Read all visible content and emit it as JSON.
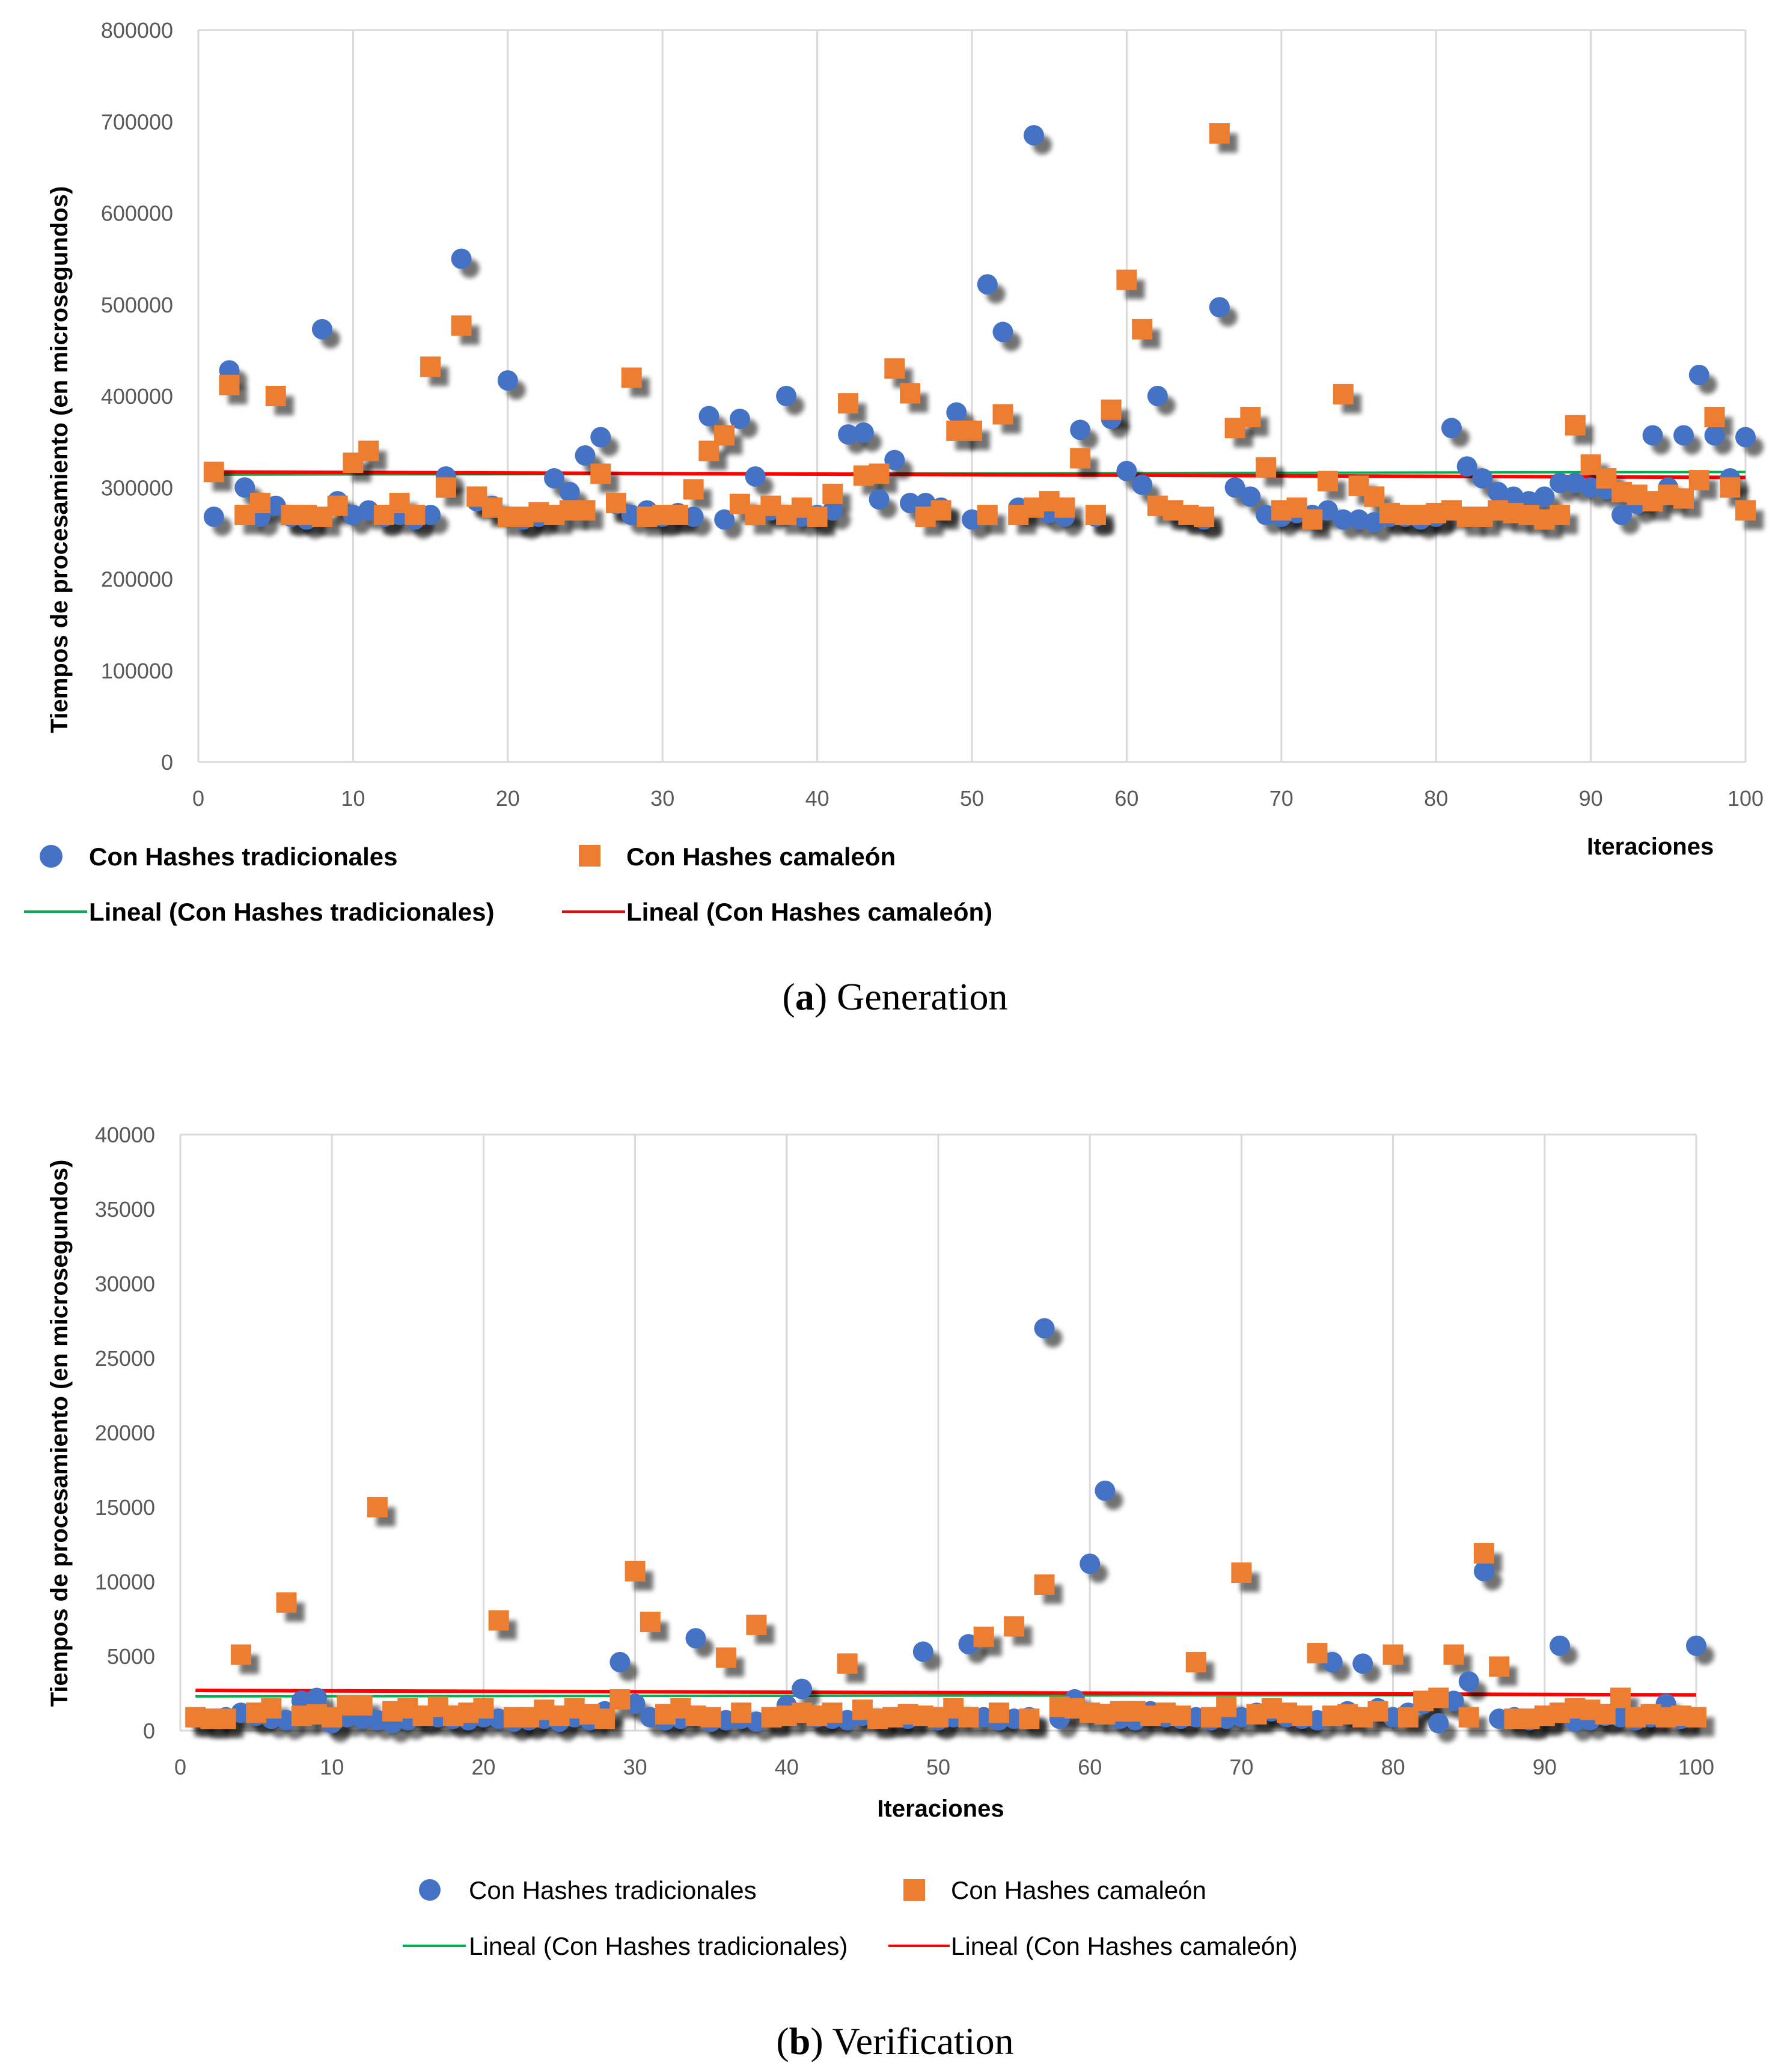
{
  "figure": {
    "a": {
      "letter": "a",
      "caption": "Generation"
    },
    "b": {
      "letter": "b",
      "caption": "Verification"
    }
  },
  "chart_data": [
    {
      "id": "a",
      "type": "scatter",
      "title": "",
      "xlabel": "Iteraciones",
      "ylabel": "Tiempos de procesamiento (en microsegundos)",
      "xlim": [
        0,
        100
      ],
      "ylim": [
        0,
        800000
      ],
      "xticks": [
        0,
        10,
        20,
        30,
        40,
        50,
        60,
        70,
        80,
        90,
        100
      ],
      "yticks": [
        0,
        100000,
        200000,
        300000,
        400000,
        500000,
        600000,
        700000,
        800000
      ],
      "grid": "vertical",
      "legend_position": "bottom",
      "series": [
        {
          "name": "Con Hashes tradicionales",
          "marker": "circle",
          "color": "#4472C4",
          "x": [
            1,
            2,
            3,
            4,
            5,
            6,
            7,
            8,
            9,
            10,
            11,
            12,
            13,
            14,
            15,
            16,
            17,
            18,
            19,
            20,
            21,
            22,
            23,
            24,
            25,
            26,
            27,
            28,
            29,
            30,
            31,
            32,
            33,
            34,
            35,
            36,
            37,
            38,
            39,
            40,
            41,
            42,
            43,
            44,
            45,
            46,
            47,
            48,
            49,
            50,
            51,
            52,
            53,
            54,
            55,
            56,
            57,
            58,
            59,
            60,
            61,
            62,
            63,
            64,
            65,
            66,
            67,
            68,
            69,
            70,
            71,
            72,
            73,
            74,
            75,
            76,
            77,
            78,
            79,
            80,
            81,
            82,
            83,
            84,
            85,
            86,
            87,
            88,
            89,
            90,
            91,
            92,
            93,
            94,
            95,
            96,
            97,
            98,
            99,
            100
          ],
          "values": [
            268000,
            428000,
            300000,
            268000,
            280000,
            268000,
            265000,
            473000,
            285000,
            270000,
            275000,
            268000,
            270000,
            265000,
            270000,
            312000,
            550000,
            285000,
            280000,
            417000,
            265000,
            268000,
            310000,
            295000,
            335000,
            355000,
            282000,
            270000,
            275000,
            268000,
            272000,
            268000,
            378000,
            265000,
            375000,
            312000,
            275000,
            400000,
            268000,
            270000,
            275000,
            358000,
            360000,
            287000,
            330000,
            283000,
            283000,
            278000,
            382000,
            265000,
            522000,
            470000,
            278000,
            685000,
            272000,
            268000,
            363000,
            268000,
            375000,
            318000,
            303000,
            400000,
            275000,
            270000,
            265000,
            497000,
            300000,
            290000,
            270000,
            268000,
            272000,
            270000,
            275000,
            265000,
            265000,
            262000,
            268000,
            268000,
            265000,
            268000,
            365000,
            323000,
            310000,
            295000,
            290000,
            285000,
            290000,
            305000,
            305000,
            300000,
            298000,
            270000,
            282000,
            357000,
            300000,
            357000,
            423000,
            357000,
            310000,
            355000
          ]
        },
        {
          "name": "Con Hashes camaleón",
          "marker": "square",
          "color": "#ED7D31",
          "x": [
            1,
            2,
            3,
            4,
            5,
            6,
            7,
            8,
            9,
            10,
            11,
            12,
            13,
            14,
            15,
            16,
            17,
            18,
            19,
            20,
            21,
            22,
            23,
            24,
            25,
            26,
            27,
            28,
            29,
            30,
            31,
            32,
            33,
            34,
            35,
            36,
            37,
            38,
            39,
            40,
            41,
            42,
            43,
            44,
            45,
            46,
            47,
            48,
            49,
            50,
            51,
            52,
            53,
            54,
            55,
            56,
            57,
            58,
            59,
            60,
            61,
            62,
            63,
            64,
            65,
            66,
            67,
            68,
            69,
            70,
            71,
            72,
            73,
            74,
            75,
            76,
            77,
            78,
            79,
            80,
            81,
            82,
            83,
            84,
            85,
            86,
            87,
            88,
            89,
            90,
            91,
            92,
            93,
            94,
            95,
            96,
            97,
            98,
            99,
            100
          ],
          "values": [
            317000,
            412000,
            270000,
            283000,
            400000,
            270000,
            270000,
            268000,
            280000,
            327000,
            340000,
            270000,
            283000,
            270000,
            432000,
            300000,
            477000,
            290000,
            278000,
            268000,
            268000,
            273000,
            270000,
            275000,
            275000,
            315000,
            283000,
            420000,
            268000,
            270000,
            270000,
            298000,
            340000,
            357000,
            282000,
            270000,
            280000,
            270000,
            278000,
            268000,
            293000,
            392000,
            313000,
            315000,
            430000,
            403000,
            268000,
            275000,
            362000,
            362000,
            270000,
            380000,
            270000,
            278000,
            285000,
            278000,
            332000,
            270000,
            385000,
            527000,
            473000,
            280000,
            275000,
            270000,
            268000,
            687000,
            365000,
            377000,
            322000,
            275000,
            278000,
            265000,
            307000,
            402000,
            302000,
            290000,
            272000,
            270000,
            270000,
            272000,
            275000,
            268000,
            268000,
            275000,
            272000,
            270000,
            265000,
            270000,
            368000,
            325000,
            310000,
            295000,
            292000,
            285000,
            292000,
            288000,
            308000,
            377000,
            300000,
            275000
          ]
        },
        {
          "name": "Lineal (Con Hashes tradicionales)",
          "type": "line",
          "color": "#00B050",
          "x": [
            1,
            100
          ],
          "values": [
            314000,
            317000
          ]
        },
        {
          "name": "Lineal (Con Hashes camaleón)",
          "type": "line",
          "color": "#FF0000",
          "x": [
            1,
            100
          ],
          "values": [
            317000,
            311000
          ]
        }
      ]
    },
    {
      "id": "b",
      "type": "scatter",
      "title": "",
      "xlabel": "Iteraciones",
      "ylabel": "Tiempos de procesamiento (en microsegundos)",
      "xlim": [
        0,
        100
      ],
      "ylim": [
        0,
        40000
      ],
      "xticks": [
        0,
        10,
        20,
        30,
        40,
        50,
        60,
        70,
        80,
        90,
        100
      ],
      "yticks": [
        0,
        5000,
        10000,
        15000,
        20000,
        25000,
        30000,
        35000,
        40000
      ],
      "grid": "vertical",
      "legend_position": "bottom",
      "series": [
        {
          "name": "Con Hashes tradicionales",
          "marker": "circle",
          "color": "#4472C4",
          "x": [
            1,
            2,
            3,
            4,
            5,
            6,
            7,
            8,
            9,
            10,
            11,
            12,
            13,
            14,
            15,
            16,
            17,
            18,
            19,
            20,
            21,
            22,
            23,
            24,
            25,
            26,
            27,
            28,
            29,
            30,
            31,
            32,
            33,
            34,
            35,
            36,
            37,
            38,
            39,
            40,
            41,
            42,
            43,
            44,
            45,
            46,
            47,
            48,
            49,
            50,
            51,
            52,
            53,
            54,
            55,
            56,
            57,
            58,
            59,
            60,
            61,
            62,
            63,
            64,
            65,
            66,
            67,
            68,
            69,
            70,
            71,
            72,
            73,
            74,
            75,
            76,
            77,
            78,
            79,
            80,
            81,
            82,
            83,
            84,
            85,
            86,
            87,
            88,
            89,
            90,
            91,
            92,
            93,
            94,
            95,
            96,
            97,
            98,
            99,
            100
          ],
          "values": [
            900,
            800,
            900,
            1200,
            1000,
            800,
            700,
            2000,
            2200,
            500,
            900,
            800,
            700,
            500,
            700,
            1000,
            900,
            800,
            700,
            900,
            800,
            600,
            700,
            800,
            600,
            900,
            700,
            1300,
            4600,
            1800,
            900,
            700,
            800,
            6200,
            600,
            700,
            800,
            600,
            900,
            1700,
            2800,
            900,
            800,
            700,
            1000,
            800,
            900,
            800,
            5300,
            700,
            900,
            5800,
            900,
            700,
            800,
            900,
            27000,
            800,
            2100,
            11200,
            16100,
            800,
            700,
            1300,
            900,
            800,
            900,
            700,
            800,
            900,
            1200,
            1300,
            900,
            800,
            700,
            4600,
            1300,
            4500,
            1500,
            900,
            1200,
            1800,
            500,
            2000,
            3300,
            10700,
            800,
            900,
            700,
            1000,
            5700,
            600,
            700,
            1000,
            900,
            700,
            900,
            1800,
            800,
            5700
          ]
        },
        {
          "name": "Con Hashes camaleón",
          "marker": "square",
          "color": "#ED7D31",
          "x": [
            1,
            2,
            3,
            4,
            5,
            6,
            7,
            8,
            9,
            10,
            11,
            12,
            13,
            14,
            15,
            16,
            17,
            18,
            19,
            20,
            21,
            22,
            23,
            24,
            25,
            26,
            27,
            28,
            29,
            30,
            31,
            32,
            33,
            34,
            35,
            36,
            37,
            38,
            39,
            40,
            41,
            42,
            43,
            44,
            45,
            46,
            47,
            48,
            49,
            50,
            51,
            52,
            53,
            54,
            55,
            56,
            57,
            58,
            59,
            60,
            61,
            62,
            63,
            64,
            65,
            66,
            67,
            68,
            69,
            70,
            71,
            72,
            73,
            74,
            75,
            76,
            77,
            78,
            79,
            80,
            81,
            82,
            83,
            84,
            85,
            86,
            87,
            88,
            89,
            90,
            91,
            92,
            93,
            94,
            95,
            96,
            97,
            98,
            99,
            100
          ],
          "values": [
            900,
            800,
            800,
            5100,
            1200,
            1500,
            8600,
            1000,
            1100,
            900,
            1700,
            1700,
            15000,
            1300,
            1500,
            1000,
            1600,
            1000,
            1200,
            1500,
            7400,
            900,
            900,
            1400,
            1000,
            1500,
            1100,
            800,
            2100,
            10700,
            7300,
            1100,
            1500,
            1000,
            900,
            4900,
            1200,
            7100,
            900,
            1000,
            1200,
            1000,
            1200,
            4500,
            1400,
            800,
            900,
            1100,
            1000,
            900,
            1500,
            900,
            6300,
            1200,
            7000,
            800,
            9800,
            1600,
            1500,
            1200,
            1100,
            1300,
            1300,
            1000,
            1200,
            1000,
            4600,
            900,
            1600,
            10600,
            1100,
            1500,
            1200,
            1000,
            5200,
            1000,
            1100,
            900,
            1300,
            5100,
            900,
            2000,
            2200,
            5100,
            900,
            11900,
            4300,
            800,
            800,
            1000,
            1200,
            1500,
            1400,
            1100,
            2200,
            900,
            1100,
            900,
            1000,
            900
          ]
        },
        {
          "name": "Lineal (Con Hashes tradicionales)",
          "type": "line",
          "color": "#00B050",
          "x": [
            1,
            100
          ],
          "values": [
            2300,
            2400
          ]
        },
        {
          "name": "Lineal (Con Hashes camaleón)",
          "type": "line",
          "color": "#FF0000",
          "x": [
            1,
            100
          ],
          "values": [
            2700,
            2400
          ]
        }
      ]
    }
  ]
}
